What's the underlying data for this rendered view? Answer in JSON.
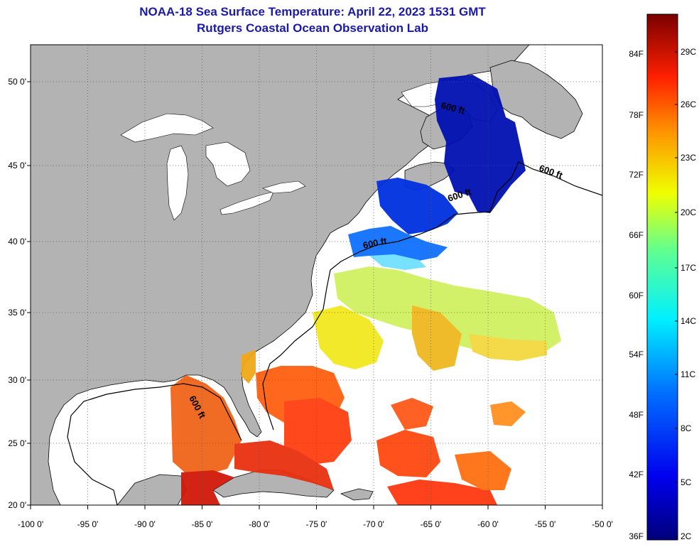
{
  "title": "NOAA-18 Sea Surface Temperature:  April 22, 2023 1531 GMT",
  "subtitle": "Rutgers Coastal Ocean Observation Lab",
  "map": {
    "lon_range": [
      -100,
      -50
    ],
    "lat_range": [
      20,
      52.5
    ],
    "lon_ticks": [
      {
        "value": -100,
        "label": "-100 0'"
      },
      {
        "value": -95,
        "label": "-95 0'"
      },
      {
        "value": -90,
        "label": "-90 0'"
      },
      {
        "value": -85,
        "label": "-85 0'"
      },
      {
        "value": -80,
        "label": "-80 0'"
      },
      {
        "value": -75,
        "label": "-75 0'"
      },
      {
        "value": -70,
        "label": "-70 0'"
      },
      {
        "value": -65,
        "label": "-65 0'"
      },
      {
        "value": -60,
        "label": "-60 0'"
      },
      {
        "value": -55,
        "label": "-55 0'"
      },
      {
        "value": -50,
        "label": "-50 0'"
      }
    ],
    "lat_ticks": [
      {
        "value": 20,
        "label": "20 0'"
      },
      {
        "value": 25,
        "label": "25 0'"
      },
      {
        "value": 30,
        "label": "30 0'"
      },
      {
        "value": 35,
        "label": "35 0'"
      },
      {
        "value": 40,
        "label": "40 0'"
      },
      {
        "value": 45,
        "label": "45 0'"
      },
      {
        "value": 50,
        "label": "50 0'"
      }
    ],
    "grid": "dotted",
    "land_color": "#b3b3b3",
    "contour_labels": [
      "600 ft",
      "600 ft",
      "600 ft",
      "600 ft",
      "600 ft"
    ]
  },
  "colorbar": {
    "fahrenheit_labels": [
      "84F",
      "78F",
      "72F",
      "66F",
      "60F",
      "54F",
      "48F",
      "42F",
      "36F"
    ],
    "celsius_labels": [
      "29C",
      "26C",
      "23C",
      "20C",
      "17C",
      "14C",
      "11C",
      "8C",
      "5C",
      "2C"
    ]
  }
}
